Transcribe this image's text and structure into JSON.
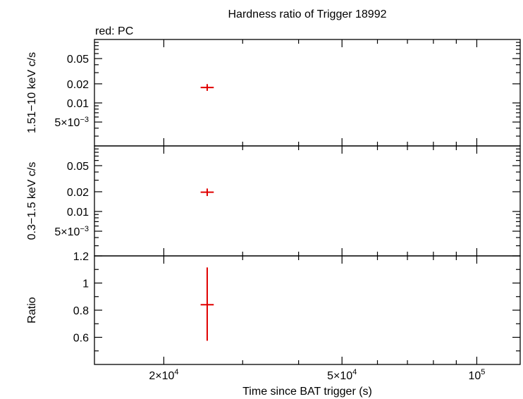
{
  "chart_data": {
    "type": "scatter",
    "title": "Hardness ratio of Trigger 18992",
    "subtitle": "red: PC",
    "xlabel": "Time since BAT trigger (s)",
    "x_scale": "log",
    "xlim": [
      14000,
      125000
    ],
    "x_ticks": [
      {
        "value": 20000,
        "mant": "2",
        "sep": "×",
        "base": "10",
        "exp": "4"
      },
      {
        "value": 50000,
        "mant": "5",
        "sep": "×",
        "base": "10",
        "exp": "4"
      },
      {
        "value": 100000,
        "mant": "",
        "sep": "",
        "base": "10",
        "exp": "5"
      }
    ],
    "marker_color": "#e00000",
    "panels": [
      {
        "ylabel": "1.51−10 keV c/s",
        "y_scale": "log",
        "ylim": [
          0.0021,
          0.1
        ],
        "y_ticks": [
          {
            "value": 0.05,
            "label": "0.05"
          },
          {
            "value": 0.02,
            "label": "0.02"
          },
          {
            "value": 0.01,
            "label": "0.01"
          },
          {
            "value": 0.005,
            "label": "5×10",
            "exp": "−3"
          }
        ],
        "points": [
          {
            "x": 25000,
            "y": 0.0175,
            "x_err": [
              24700,
              25300
            ],
            "y_err": [
              0.0155,
              0.0198
            ]
          }
        ]
      },
      {
        "ylabel": "0.3−1.5 keV c/s",
        "y_scale": "log",
        "ylim": [
          0.0021,
          0.1
        ],
        "y_ticks": [
          {
            "value": 0.05,
            "label": "0.05"
          },
          {
            "value": 0.02,
            "label": "0.02"
          },
          {
            "value": 0.01,
            "label": "0.01"
          },
          {
            "value": 0.005,
            "label": "5×10",
            "exp": "−3"
          }
        ],
        "points": [
          {
            "x": 25000,
            "y": 0.0197,
            "x_err": [
              24700,
              25300
            ],
            "y_err": [
              0.0172,
              0.0224
            ]
          }
        ]
      },
      {
        "ylabel": "Ratio",
        "y_scale": "linear",
        "ylim": [
          0.4,
          1.2
        ],
        "y_ticks": [
          {
            "value": 1.2,
            "label": "1.2"
          },
          {
            "value": 1.0,
            "label": "1"
          },
          {
            "value": 0.8,
            "label": "0.8"
          },
          {
            "value": 0.6,
            "label": "0.6"
          }
        ],
        "points": [
          {
            "x": 25000,
            "y": 0.84,
            "x_err": [
              24700,
              25300
            ],
            "y_err": [
              0.575,
              1.115
            ]
          }
        ]
      }
    ]
  }
}
